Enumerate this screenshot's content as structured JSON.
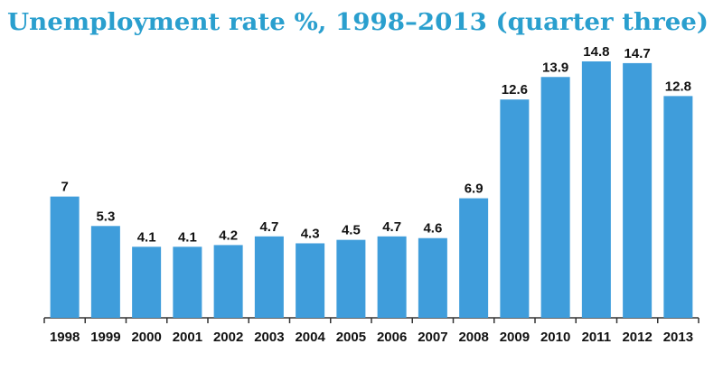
{
  "chart_data": {
    "type": "bar",
    "title": "Unemployment rate %, 1998–2013 (quarter three)",
    "categories": [
      "1998",
      "1999",
      "2000",
      "2001",
      "2002",
      "2003",
      "2004",
      "2005",
      "2006",
      "2007",
      "2008",
      "2009",
      "2010",
      "2011",
      "2012",
      "2013"
    ],
    "values": [
      7,
      5.3,
      4.1,
      4.1,
      4.2,
      4.7,
      4.3,
      4.5,
      4.7,
      4.6,
      6.9,
      12.6,
      13.9,
      14.8,
      14.7,
      12.8
    ],
    "color": "#3f9ddb"
  }
}
